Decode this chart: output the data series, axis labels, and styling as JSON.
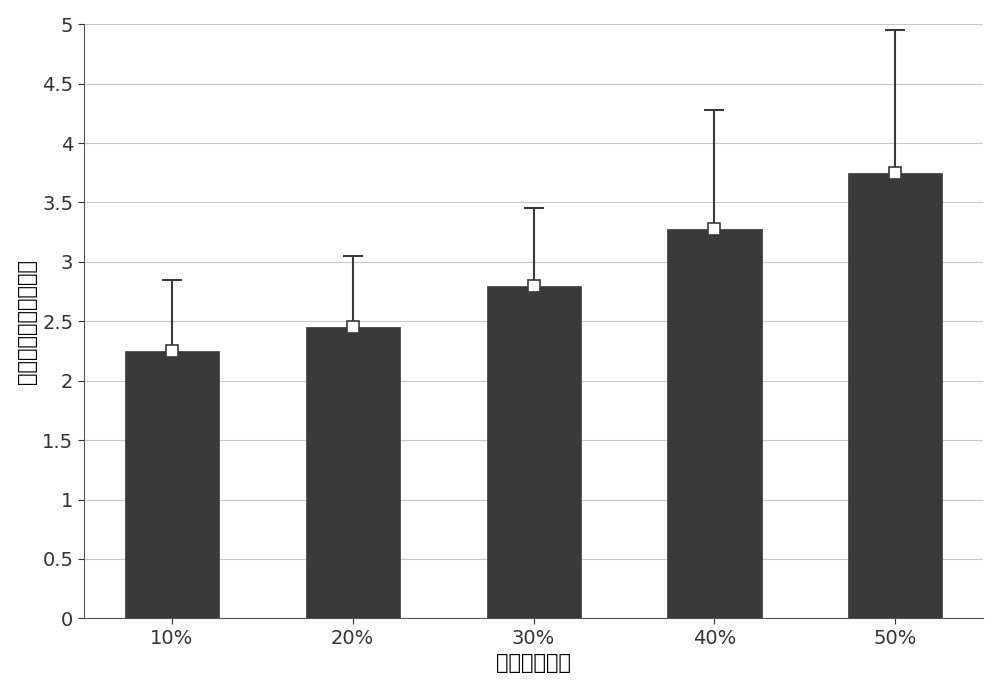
{
  "categories": [
    "10%",
    "20%",
    "30%",
    "40%",
    "50%"
  ],
  "values": [
    2.25,
    2.45,
    2.8,
    3.28,
    3.75
  ],
  "errors_upper": [
    0.6,
    0.6,
    0.65,
    1.0,
    1.2
  ],
  "errors_lower": [
    0.6,
    0.65,
    0.6,
    1.0,
    1.15
  ],
  "bar_color": "#3a3a3a",
  "bar_edge_color": "#3a3a3a",
  "error_color": "#3a3a3a",
  "marker_color": "white",
  "marker_edge_color": "#3a3a3a",
  "background_color": "#ffffff",
  "grid_color": "#c8c8c8",
  "xlabel": "链路中断比例",
  "ylabel": "绝对误差（单位：米）",
  "ylim": [
    0,
    5
  ],
  "yticks": [
    0,
    0.5,
    1.0,
    1.5,
    2.0,
    2.5,
    3.0,
    3.5,
    4.0,
    4.5,
    5.0
  ],
  "xlabel_fontsize": 15,
  "ylabel_fontsize": 15,
  "tick_fontsize": 14,
  "bar_width": 0.52
}
